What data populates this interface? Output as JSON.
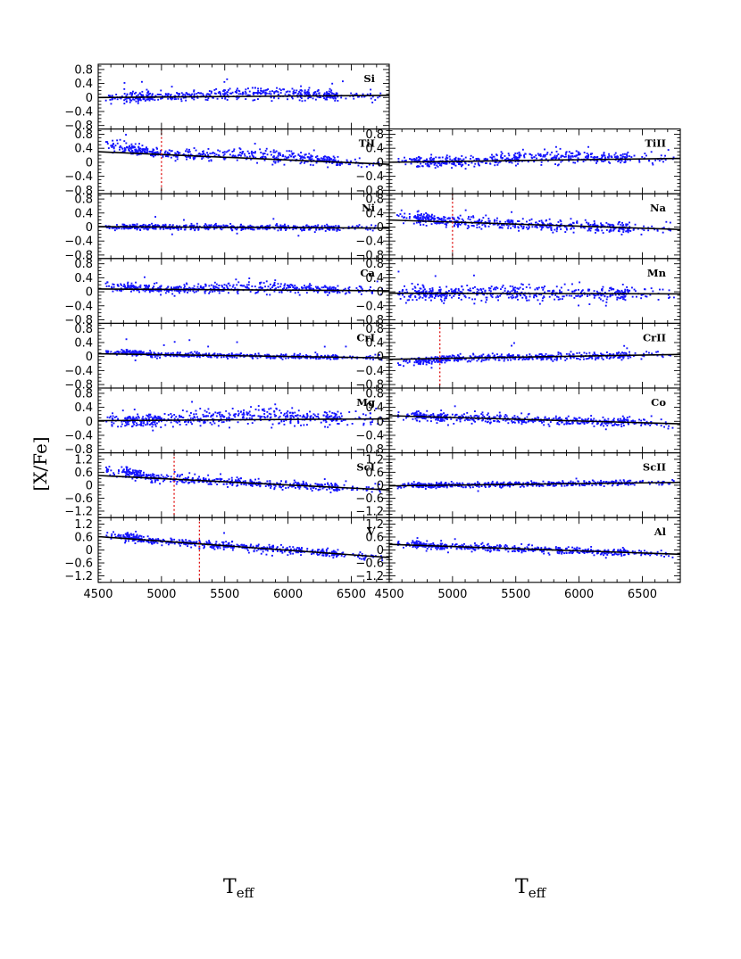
{
  "figure": {
    "ylabel": "[X/Fe]",
    "xlabel_left": "T",
    "xlabel_left_sub": "eff",
    "xlabel_right": "T",
    "xlabel_right_sub": "eff"
  },
  "colors": {
    "points": "#1414ff",
    "fit": "#000000",
    "cut": "#e01010"
  },
  "chart_data": [
    {
      "type": "scatter",
      "label": "Si",
      "column": "left",
      "row": 0,
      "xlim": [
        4500,
        6800
      ],
      "ylim": [
        -0.9,
        0.95
      ],
      "xticks": [
        4500,
        5000,
        5500,
        6000,
        6500
      ],
      "yticks": [
        0.8,
        0.4,
        0,
        -0.4,
        -0.8
      ],
      "ytick_labels": [
        "0.8",
        "0.4",
        "0",
        "−0.4",
        "−0.8"
      ],
      "fit": [
        [
          4500,
          0.0
        ],
        [
          6800,
          0.06
        ]
      ],
      "cutoff": null,
      "spread": 0.07,
      "hump": 0.05,
      "cool_excess": 0.0
    },
    {
      "type": "scatter",
      "label": "TiI",
      "column": "left",
      "row": 1,
      "xlim": [
        4500,
        6800
      ],
      "ylim": [
        -0.9,
        0.95
      ],
      "xticks": [
        4500,
        5000,
        5500,
        6000,
        6500
      ],
      "yticks": [
        0.8,
        0.4,
        0,
        -0.4,
        -0.8
      ],
      "ytick_labels": [
        "0.8",
        "0.4",
        "0",
        "−0.4",
        "−0.8"
      ],
      "fit": [
        [
          4500,
          0.3
        ],
        [
          6800,
          -0.06
        ]
      ],
      "cutoff": 5000,
      "spread": 0.07,
      "hump": 0.06,
      "cool_excess": 0.25
    },
    {
      "type": "scatter",
      "label": "TiII",
      "column": "right",
      "row": 1,
      "xlim": [
        4500,
        6800
      ],
      "ylim": [
        -0.9,
        0.95
      ],
      "xticks": [
        4500,
        5000,
        5500,
        6000,
        6500
      ],
      "yticks": [
        0.8,
        0.4,
        0,
        -0.4,
        -0.8
      ],
      "ytick_labels": [
        "0.8",
        "0.4",
        "0",
        "−0.4",
        "−0.8"
      ],
      "fit": [
        [
          4500,
          0.0
        ],
        [
          6800,
          0.11
        ]
      ],
      "cutoff": null,
      "spread": 0.07,
      "hump": 0.06,
      "cool_excess": 0.0
    },
    {
      "type": "scatter",
      "label": "Ni",
      "column": "left",
      "row": 2,
      "xlim": [
        4500,
        6800
      ],
      "ylim": [
        -0.9,
        0.95
      ],
      "xticks": [
        4500,
        5000,
        5500,
        6000,
        6500
      ],
      "yticks": [
        0.8,
        0.4,
        0,
        -0.4,
        -0.8
      ],
      "ytick_labels": [
        "0.8",
        "0.4",
        "0",
        "−0.4",
        "−0.8"
      ],
      "fit": [
        [
          4500,
          0.01
        ],
        [
          6800,
          -0.03
        ]
      ],
      "cutoff": null,
      "spread": 0.04,
      "hump": 0.0,
      "cool_excess": 0.0
    },
    {
      "type": "scatter",
      "label": "Na",
      "column": "right",
      "row": 2,
      "xlim": [
        4500,
        6800
      ],
      "ylim": [
        -0.9,
        0.95
      ],
      "xticks": [
        4500,
        5000,
        5500,
        6000,
        6500
      ],
      "yticks": [
        0.8,
        0.4,
        0,
        -0.4,
        -0.8
      ],
      "ytick_labels": [
        "0.8",
        "0.4",
        "0",
        "−0.4",
        "−0.8"
      ],
      "fit": [
        [
          4500,
          0.2
        ],
        [
          6800,
          -0.07
        ]
      ],
      "cutoff": 5000,
      "spread": 0.08,
      "hump": 0.0,
      "cool_excess": 0.15
    },
    {
      "type": "scatter",
      "label": "Ca",
      "column": "left",
      "row": 3,
      "xlim": [
        4500,
        6800
      ],
      "ylim": [
        -0.9,
        0.95
      ],
      "xticks": [
        4500,
        5000,
        5500,
        6000,
        6500
      ],
      "yticks": [
        0.8,
        0.4,
        0,
        -0.4,
        -0.8
      ],
      "ytick_labels": [
        "0.8",
        "0.4",
        "0",
        "−0.4",
        "−0.8"
      ],
      "fit": [
        [
          4500,
          0.08
        ],
        [
          6800,
          0.03
        ]
      ],
      "cutoff": null,
      "spread": 0.06,
      "hump": 0.05,
      "cool_excess": 0.1
    },
    {
      "type": "scatter",
      "label": "Mn",
      "column": "right",
      "row": 3,
      "xlim": [
        4500,
        6800
      ],
      "ylim": [
        -0.9,
        0.95
      ],
      "xticks": [
        4500,
        5000,
        5500,
        6000,
        6500
      ],
      "yticks": [
        0.8,
        0.4,
        0,
        -0.4,
        -0.8
      ],
      "ytick_labels": [
        "0.8",
        "0.4",
        "0",
        "−0.4",
        "−0.8"
      ],
      "fit": [
        [
          4500,
          -0.04
        ],
        [
          6800,
          -0.06
        ]
      ],
      "cutoff": null,
      "spread": 0.11,
      "hump": 0.0,
      "cool_excess": 0.0
    },
    {
      "type": "scatter",
      "label": "CrI",
      "column": "left",
      "row": 4,
      "xlim": [
        4500,
        6800
      ],
      "ylim": [
        -0.9,
        0.95
      ],
      "xticks": [
        4500,
        5000,
        5500,
        6000,
        6500
      ],
      "yticks": [
        0.8,
        0.4,
        0,
        -0.4,
        -0.8
      ],
      "ytick_labels": [
        "0.8",
        "0.4",
        "0",
        "−0.4",
        "−0.8"
      ],
      "fit": [
        [
          4500,
          0.08
        ],
        [
          6800,
          -0.04
        ]
      ],
      "cutoff": null,
      "spread": 0.035,
      "hump": 0.0,
      "cool_excess": 0.08
    },
    {
      "type": "scatter",
      "label": "CrII",
      "column": "right",
      "row": 4,
      "xlim": [
        4500,
        6800
      ],
      "ylim": [
        -0.9,
        0.95
      ],
      "xticks": [
        4500,
        5000,
        5500,
        6000,
        6500
      ],
      "yticks": [
        0.8,
        0.4,
        0,
        -0.4,
        -0.8
      ],
      "ytick_labels": [
        "0.8",
        "0.4",
        "0",
        "−0.4",
        "−0.8"
      ],
      "fit": [
        [
          4500,
          -0.08
        ],
        [
          6800,
          0.06
        ]
      ],
      "cutoff": 4900,
      "spread": 0.05,
      "hump": 0.0,
      "cool_excess": -0.12
    },
    {
      "type": "scatter",
      "label": "Mg",
      "column": "left",
      "row": 5,
      "xlim": [
        4500,
        6800
      ],
      "ylim": [
        -0.9,
        0.95
      ],
      "xticks": [
        4500,
        5000,
        5500,
        6000,
        6500
      ],
      "yticks": [
        0.8,
        0.4,
        0,
        -0.4,
        -0.8
      ],
      "ytick_labels": [
        "0.8",
        "0.4",
        "0",
        "−0.4",
        "−0.8"
      ],
      "fit": [
        [
          4500,
          0.02
        ],
        [
          6800,
          0.07
        ]
      ],
      "cutoff": null,
      "spread": 0.1,
      "hump": 0.07,
      "cool_excess": 0.0
    },
    {
      "type": "scatter",
      "label": "Co",
      "column": "right",
      "row": 5,
      "xlim": [
        4500,
        6800
      ],
      "ylim": [
        -0.9,
        0.95
      ],
      "xticks": [
        4500,
        5000,
        5500,
        6000,
        6500
      ],
      "yticks": [
        0.8,
        0.4,
        0,
        -0.4,
        -0.8
      ],
      "ytick_labels": [
        "0.8",
        "0.4",
        "0",
        "−0.4",
        "−0.8"
      ],
      "fit": [
        [
          4500,
          0.16
        ],
        [
          6800,
          -0.07
        ]
      ],
      "cutoff": null,
      "spread": 0.07,
      "hump": 0.0,
      "cool_excess": 0.02
    },
    {
      "type": "scatter",
      "label": "ScI",
      "column": "left",
      "row": 6,
      "xlim": [
        4500,
        6800
      ],
      "ylim": [
        -1.5,
        1.5
      ],
      "xticks": [
        4500,
        5000,
        5500,
        6000,
        6500
      ],
      "yticks": [
        1.2,
        0.6,
        0,
        -0.6,
        -1.2
      ],
      "ytick_labels": [
        "1.2",
        "0.6",
        "0",
        "−0.6",
        "−1.2"
      ],
      "fit": [
        [
          4500,
          0.45
        ],
        [
          6800,
          -0.22
        ]
      ],
      "cutoff": 5100,
      "spread": 0.1,
      "hump": 0.0,
      "cool_excess": 0.35
    },
    {
      "type": "scatter",
      "label": "ScII",
      "column": "right",
      "row": 6,
      "xlim": [
        4500,
        6800
      ],
      "ylim": [
        -1.5,
        1.5
      ],
      "xticks": [
        4500,
        5000,
        5500,
        6000,
        6500
      ],
      "yticks": [
        1.2,
        0.6,
        0,
        -0.6,
        -1.2
      ],
      "ytick_labels": [
        "1.2",
        "0.6",
        "0",
        "−0.6",
        "−1.2"
      ],
      "fit": [
        [
          4500,
          -0.03
        ],
        [
          6800,
          0.13
        ]
      ],
      "cutoff": null,
      "spread": 0.06,
      "hump": 0.0,
      "cool_excess": 0.0
    },
    {
      "type": "scatter",
      "label": "V",
      "column": "left",
      "row": 7,
      "xlim": [
        4500,
        6800
      ],
      "ylim": [
        -1.5,
        1.5
      ],
      "xticks": [
        4500,
        5000,
        5500,
        6000,
        6500
      ],
      "yticks": [
        1.2,
        0.6,
        0,
        -0.6,
        -1.2
      ],
      "ytick_labels": [
        "1.2",
        "0.6",
        "0",
        "−0.6",
        "−1.2"
      ],
      "fit": [
        [
          4500,
          0.62
        ],
        [
          6800,
          -0.35
        ]
      ],
      "cutoff": 5300,
      "spread": 0.09,
      "hump": 0.0,
      "cool_excess": 0.1
    },
    {
      "type": "scatter",
      "label": "Al",
      "column": "right",
      "row": 7,
      "xlim": [
        4500,
        6800
      ],
      "ylim": [
        -1.5,
        1.5
      ],
      "xticks": [
        4500,
        5000,
        5500,
        6000,
        6500
      ],
      "yticks": [
        1.2,
        0.6,
        0,
        -0.6,
        -1.2
      ],
      "ytick_labels": [
        "1.2",
        "0.6",
        "0",
        "−0.6",
        "−1.2"
      ],
      "fit": [
        [
          4500,
          0.26
        ],
        [
          6800,
          -0.2
        ]
      ],
      "cutoff": null,
      "spread": 0.09,
      "hump": 0.0,
      "cool_excess": 0.05
    }
  ]
}
